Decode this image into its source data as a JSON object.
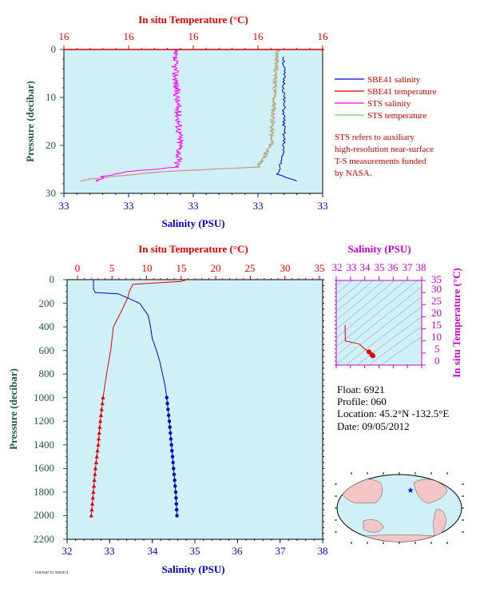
{
  "colors": {
    "plot_bg": "#d0f0f8",
    "temperature": "#e00000",
    "salinity": "#0000d0",
    "sts_salinity": "#ff00ff",
    "sts_temperature": "#70d070",
    "axis_green": "#1e5a3c",
    "magenta": "#cc00cc",
    "note_red": "#cc0000"
  },
  "top_plot": {
    "top_axis_title": "In situ Temperature (°C)",
    "top_tick_labels": [
      "16",
      "16",
      "16",
      "16",
      "16"
    ],
    "bottom_axis_title": "Salinity (PSU)",
    "bottom_tick_labels": [
      "33",
      "33",
      "33",
      "33",
      "33"
    ],
    "y_axis_title": "Pressure (decibar)",
    "y_tick_labels": [
      "0",
      "10",
      "20",
      "30"
    ]
  },
  "legend": {
    "items": [
      {
        "label": "SBE41 salinity",
        "color": "#0000d0"
      },
      {
        "label": "SBE41 temperature",
        "color": "#e00000"
      },
      {
        "label": "STS salinity",
        "color": "#ff00ff"
      },
      {
        "label": "STS temperature",
        "color": "#70d070"
      }
    ],
    "note_lines": [
      "STS refers to auxiliary",
      "high-resolution near-surface",
      "T-S measurements funded",
      "by NASA."
    ]
  },
  "main_plot": {
    "top_axis_title": "In situ Temperature (°C)",
    "top_tick_labels": [
      "0",
      "5",
      "10",
      "15",
      "20",
      "25",
      "30",
      "35"
    ],
    "bottom_axis_title": "Salinity (PSU)",
    "bottom_tick_labels": [
      "32",
      "33",
      "34",
      "35",
      "36",
      "37",
      "38"
    ],
    "y_axis_title": "Pressure (decibar)",
    "y_tick_labels": [
      "0",
      "200",
      "400",
      "600",
      "800",
      "1000",
      "1200",
      "1400",
      "1600",
      "1800",
      "2000",
      "2200"
    ]
  },
  "ts_plot": {
    "top_axis_title": "Salinity (PSU)",
    "top_tick_labels": [
      "32",
      "33",
      "34",
      "35",
      "36",
      "37",
      "38"
    ],
    "right_axis_title": "In situ Temperature (°C)",
    "right_tick_labels": [
      "0",
      "5",
      "10",
      "15",
      "20",
      "25",
      "30",
      "35"
    ]
  },
  "info": {
    "float": "Float:  6921",
    "profile": "Profile:  060",
    "location": "Location:  45.2°N  -132.5°E",
    "date": "Date:  09/05/2012"
  },
  "footer_fine_print": "FSI8 D4E7 EL 9J4E5E74",
  "chart_data": [
    {
      "type": "line",
      "title": "",
      "y_axis": {
        "label": "Pressure (decibar)",
        "range": [
          30,
          0
        ]
      },
      "x_axes": [
        {
          "position": "top",
          "label": "In situ Temperature (°C)",
          "range": [
            8,
            16
          ]
        },
        {
          "position": "bottom",
          "label": "Salinity (PSU)",
          "range": [
            32.5,
            33.3
          ]
        }
      ],
      "grid": false,
      "legend_position": "right",
      "series": [
        {
          "name": "SBE41 salinity",
          "axis": "bottom",
          "points": [
            [
              33.18,
              1.5
            ],
            [
              33.18,
              20
            ],
            [
              33.17,
              24
            ],
            [
              33.16,
              26
            ],
            [
              33.2,
              27
            ],
            [
              33.22,
              27.5
            ]
          ]
        },
        {
          "name": "SBE41 temperature",
          "axis": "top",
          "points": [
            [
              16.0,
              0
            ]
          ]
        },
        {
          "name": "STS salinity",
          "axis": "bottom",
          "points": [
            [
              32.84,
              0
            ],
            [
              32.85,
              10
            ],
            [
              32.86,
              20
            ],
            [
              32.85,
              24.5
            ],
            [
              32.7,
              25.5
            ],
            [
              32.62,
              26.5
            ],
            [
              32.6,
              27.5
            ]
          ]
        },
        {
          "name": "STS temperature",
          "axis": "top",
          "points": [
            [
              14.6,
              0
            ],
            [
              14.5,
              10
            ],
            [
              14.4,
              20
            ],
            [
              14.0,
              24.5
            ],
            [
              11.0,
              25.5
            ],
            [
              8.8,
              27
            ],
            [
              8.5,
              27.5
            ]
          ]
        }
      ]
    },
    {
      "type": "line",
      "title": "",
      "y_axis": {
        "label": "Pressure (decibar)",
        "range": [
          2200,
          0
        ]
      },
      "x_axes": [
        {
          "position": "top",
          "label": "In situ Temperature (°C)",
          "range": [
            -2,
            35
          ]
        },
        {
          "position": "bottom",
          "label": "Salinity (PSU)",
          "range": [
            32,
            38
          ]
        }
      ],
      "grid": false,
      "series": [
        {
          "name": "SBE41 salinity",
          "axis": "bottom",
          "points": [
            [
              32.62,
              0
            ],
            [
              32.62,
              80
            ],
            [
              32.66,
              110
            ],
            [
              33.2,
              120
            ],
            [
              33.7,
              200
            ],
            [
              33.9,
              300
            ],
            [
              33.95,
              380
            ],
            [
              34.0,
              500
            ],
            [
              34.1,
              600
            ],
            [
              34.18,
              700
            ],
            [
              34.24,
              800
            ],
            [
              34.3,
              900
            ],
            [
              34.34,
              1000
            ],
            [
              34.4,
              1200
            ],
            [
              34.45,
              1400
            ],
            [
              34.5,
              1600
            ],
            [
              34.55,
              1800
            ],
            [
              34.58,
              2000
            ]
          ]
        },
        {
          "name": "SBE41 temperature",
          "axis": "top",
          "points": [
            [
              15.8,
              0
            ],
            [
              15.0,
              15
            ],
            [
              8.0,
              40
            ],
            [
              7.5,
              100
            ],
            [
              7.3,
              150
            ],
            [
              6.5,
              250
            ],
            [
              5.2,
              400
            ],
            [
              4.8,
              600
            ],
            [
              4.2,
              800
            ],
            [
              3.7,
              1000
            ],
            [
              3.3,
              1200
            ],
            [
              3.0,
              1400
            ],
            [
              2.6,
              1600
            ],
            [
              2.3,
              1800
            ],
            [
              2.0,
              2000
            ]
          ]
        }
      ]
    },
    {
      "type": "line",
      "title": "",
      "x_axis": {
        "label": "Salinity (PSU)",
        "range": [
          32,
          38
        ],
        "position": "top"
      },
      "y_axis": {
        "label": "In situ Temperature (°C)",
        "range": [
          -2,
          35
        ],
        "position": "right"
      },
      "grid": false,
      "series": [
        {
          "name": "T-S profile",
          "points": [
            [
              32.62,
              15.5
            ],
            [
              32.64,
              8.5
            ],
            [
              33.6,
              7.3
            ],
            [
              34.0,
              5.0
            ],
            [
              34.3,
              3.8
            ],
            [
              34.5,
              2.5
            ],
            [
              34.58,
              2.0
            ]
          ]
        }
      ]
    }
  ]
}
